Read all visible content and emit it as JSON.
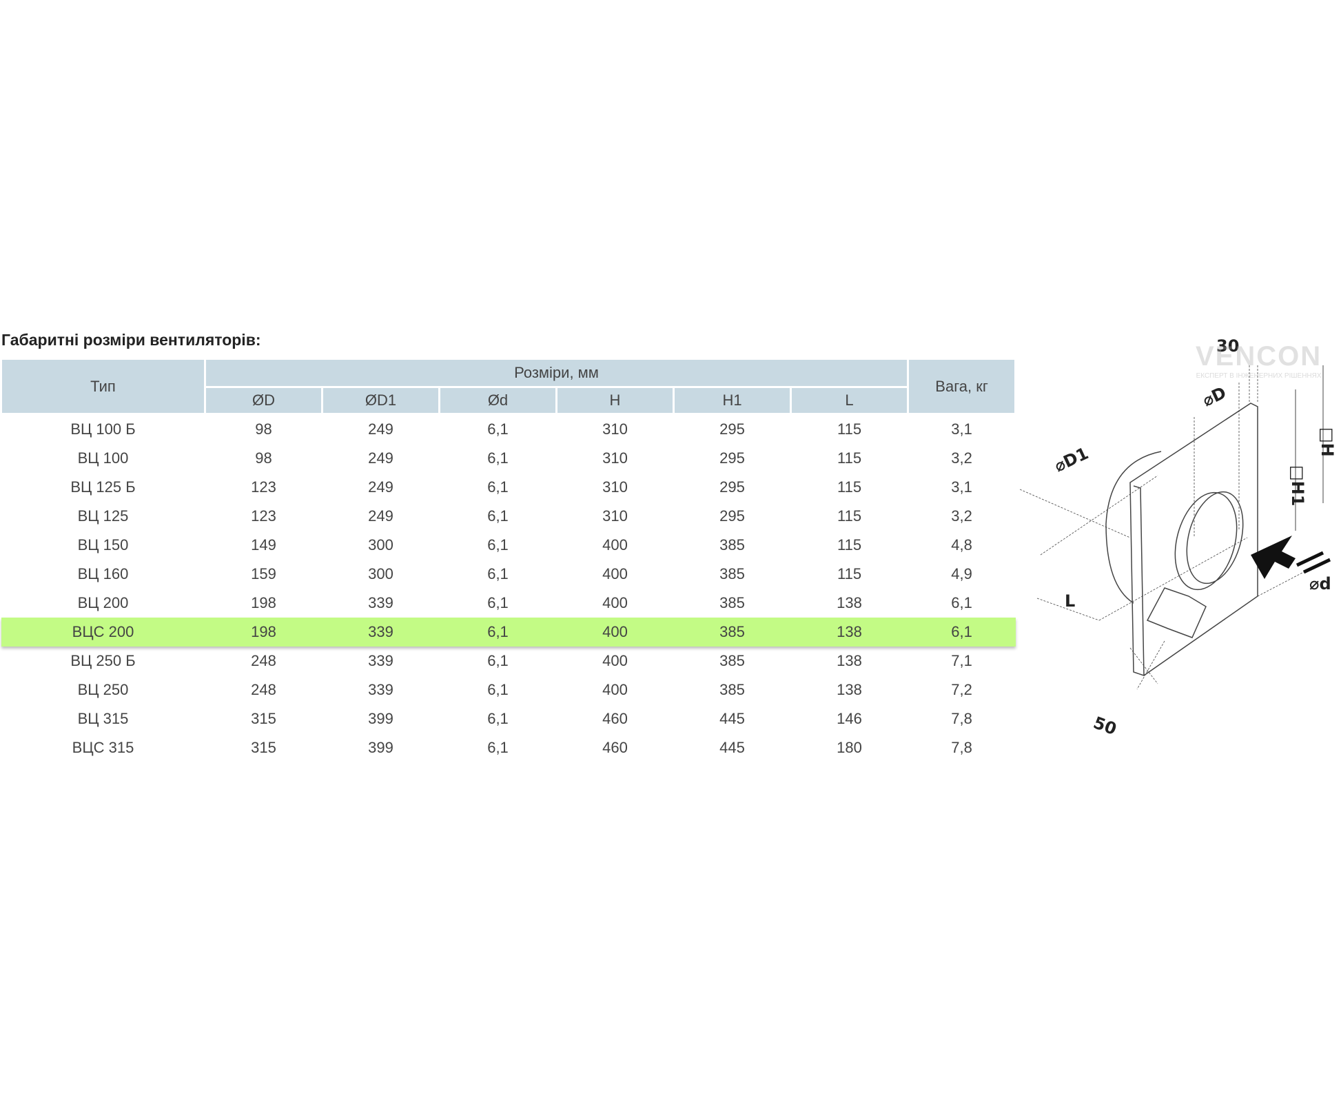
{
  "title": "Габаритні розміри вентиляторів:",
  "table": {
    "header": {
      "type": "Тип",
      "dims": "Розміри, мм",
      "weight": "Вага, кг",
      "sub": [
        "ØD",
        "ØD1",
        "Ød",
        "H",
        "H1",
        "L"
      ]
    },
    "highlight_color": "#c3fb85",
    "rows": [
      [
        "ВЦ 100 Б",
        "98",
        "249",
        "6,1",
        "310",
        "295",
        "115",
        "3,1"
      ],
      [
        "ВЦ 100",
        "98",
        "249",
        "6,1",
        "310",
        "295",
        "115",
        "3,2"
      ],
      [
        "ВЦ 125 Б",
        "123",
        "249",
        "6,1",
        "310",
        "295",
        "115",
        "3,1"
      ],
      [
        "ВЦ 125",
        "123",
        "249",
        "6,1",
        "310",
        "295",
        "115",
        "3,2"
      ],
      [
        "ВЦ 150",
        "149",
        "300",
        "6,1",
        "400",
        "385",
        "115",
        "4,8"
      ],
      [
        "ВЦ 160",
        "159",
        "300",
        "6,1",
        "400",
        "385",
        "115",
        "4,9"
      ],
      [
        "ВЦ 200",
        "198",
        "339",
        "6,1",
        "400",
        "385",
        "138",
        "6,1"
      ],
      [
        "ВЦС 200",
        "198",
        "339",
        "6,1",
        "400",
        "385",
        "138",
        "6,1"
      ],
      [
        "ВЦ 250 Б",
        "248",
        "339",
        "6,1",
        "400",
        "385",
        "138",
        "7,1"
      ],
      [
        "ВЦ 250",
        "248",
        "339",
        "6,1",
        "400",
        "385",
        "138",
        "7,2"
      ],
      [
        "ВЦ 315",
        "315",
        "399",
        "6,1",
        "460",
        "445",
        "146",
        "7,8"
      ],
      [
        "ВЦС 315",
        "315",
        "399",
        "6,1",
        "460",
        "445",
        "180",
        "7,8"
      ]
    ]
  },
  "diagram": {
    "labels": {
      "t30": "30",
      "d": "⌀D",
      "d1": "⌀D1",
      "h1": "□H1",
      "h": "□H",
      "sd": "⌀d",
      "l": "L",
      "t50": "50"
    }
  },
  "logo": {
    "name": "VENCON",
    "tagline": "ЕКСПЕРТ В ІНЖЕНЕРНИХ РІШЕННЯХ"
  }
}
